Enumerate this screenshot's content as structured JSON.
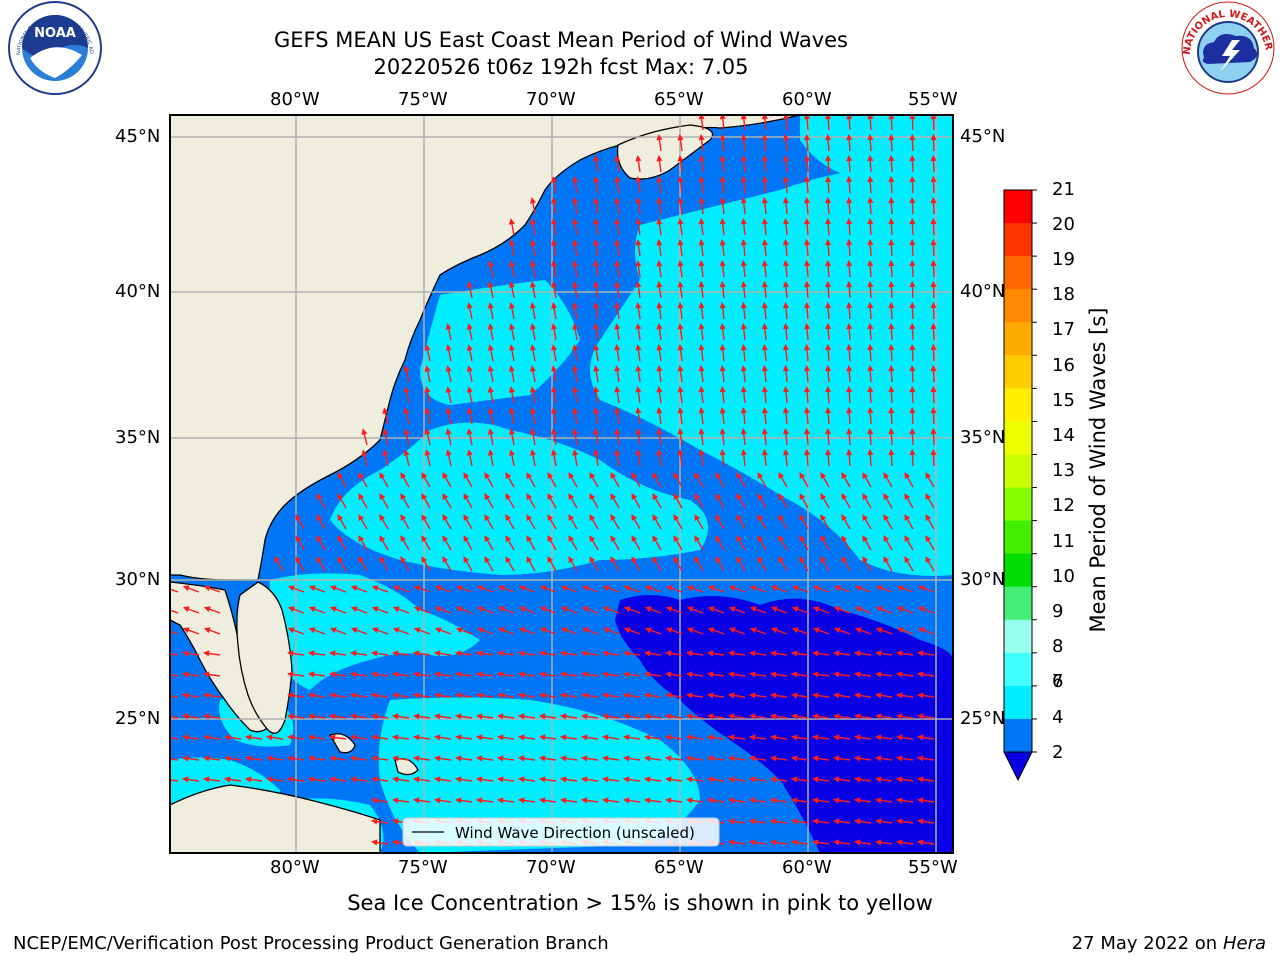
{
  "header": {
    "title_line1": "GEFS MEAN US East Coast Mean Period of Wind Waves",
    "title_line2": "20220526 t06z 192h fcst   Max: 7.05"
  },
  "logos": {
    "left": {
      "text": "NOAA",
      "ring_text": "NATIONAL OCEANIC AND ATMOSPHERIC ADMINISTRATION · U.S. DEPARTMENT OF COMMERCE"
    },
    "right": {
      "ring_text": "NATIONAL WEATHER SERVICE"
    }
  },
  "map": {
    "lon_ticks": [
      "80°W",
      "75°W",
      "70°W",
      "65°W",
      "60°W",
      "55°W"
    ],
    "lat_ticks": [
      "45°N",
      "40°N",
      "35°N",
      "30°N",
      "25°N"
    ],
    "legend_label": "Wind Wave Direction (unscaled)",
    "colors": {
      "land": "#efedde",
      "ocean_dark": "#0077f7",
      "ocean_light": "#00eeff",
      "ocean_deep": "#0a00e6",
      "arrow": "#ff1a1a",
      "grid": "#b0b0b0"
    }
  },
  "colorbar": {
    "label": "Mean Period of Wind Waves [s]",
    "ticks": [
      "21",
      "20",
      "19",
      "18",
      "17",
      "16",
      "15",
      "14",
      "13",
      "12",
      "11",
      "10",
      "9",
      "8",
      "7",
      "6",
      "4",
      "2"
    ],
    "colors": [
      "#ff0000",
      "#ff3300",
      "#ff6600",
      "#ff8800",
      "#ffaa00",
      "#ffcc00",
      "#ffee00",
      "#eeff00",
      "#ccff00",
      "#88ff00",
      "#44ee00",
      "#00dd00",
      "#44ee77",
      "#99ffee",
      "#44ffff",
      "#00eeff",
      "#0077f7"
    ],
    "extend_color": "#0a00e6"
  },
  "footer": {
    "sea_ice_note": "Sea Ice Concentration > 15% is shown in pink to yellow",
    "credit": "NCEP/EMC/Verification Post Processing Product Generation Branch",
    "date": "27 May 2022 on",
    "machine": "Hera"
  }
}
